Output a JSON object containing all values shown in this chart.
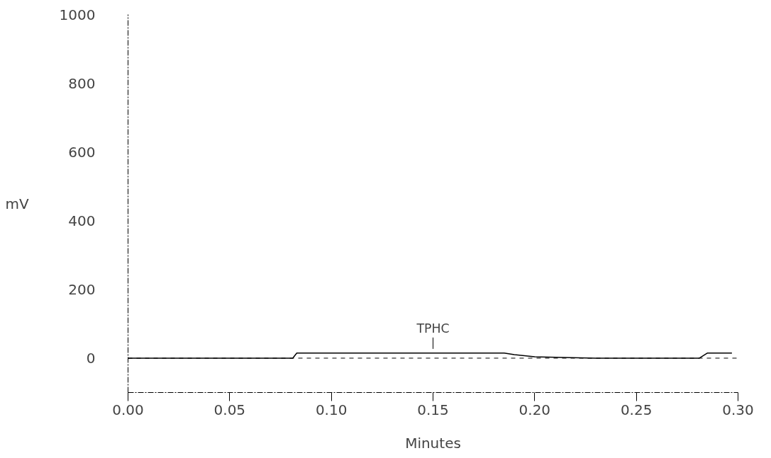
{
  "chart_data": {
    "type": "line",
    "xlabel": "Minutes",
    "ylabel": "mV",
    "xlim": [
      0,
      0.3
    ],
    "ylim": [
      -100,
      1000
    ],
    "xticks": [
      {
        "value": 0,
        "label": "0.00"
      },
      {
        "value": 0.05,
        "label": "0.05"
      },
      {
        "value": 0.1,
        "label": "0.10"
      },
      {
        "value": 0.15,
        "label": "0.15"
      },
      {
        "value": 0.2,
        "label": "0.20"
      },
      {
        "value": 0.25,
        "label": "0.25"
      },
      {
        "value": 0.3,
        "label": "0.30"
      }
    ],
    "yticks": [
      0,
      200,
      400,
      600,
      800,
      1000
    ],
    "x": [
      0,
      0.081,
      0.083,
      0.185,
      0.19,
      0.2,
      0.23,
      0.281,
      0.285,
      0.297
    ],
    "series": [
      {
        "color": "#000000",
        "values": [
          0,
          0,
          15,
          15,
          10,
          4,
          0,
          0,
          15,
          15
        ]
      }
    ],
    "ref_lines": [
      {
        "axis": "y",
        "value": 0,
        "color": "#000000",
        "line_style": "dashed"
      }
    ],
    "annotations": [
      {
        "text": "TPHC",
        "x": 0.15,
        "y": 15
      }
    ],
    "grid": false,
    "marker": "none",
    "line_style": "solid"
  }
}
